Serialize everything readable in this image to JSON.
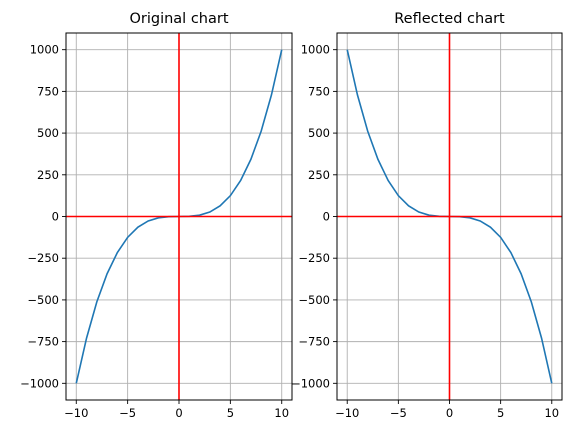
{
  "chart_data": [
    {
      "type": "line",
      "title": "Original chart",
      "xlim": [
        -11,
        11
      ],
      "ylim": [
        -1100,
        1100
      ],
      "xticks": [
        -10,
        -5,
        0,
        5,
        10
      ],
      "yticks": [
        -1000,
        -750,
        -500,
        -250,
        0,
        250,
        500,
        750,
        1000
      ],
      "xtick_labels": [
        "−10",
        "−5",
        "0",
        "5",
        "10"
      ],
      "ytick_labels": [
        "−1000",
        "−750",
        "−500",
        "−250",
        "0",
        "250",
        "500",
        "750",
        "1000"
      ],
      "grid": true,
      "reference_lines": {
        "x": 0,
        "y": 0,
        "color": "#ff0000"
      },
      "series": [
        {
          "color": "#1f77b4",
          "x": [
            -10,
            -9,
            -8,
            -7,
            -6,
            -5,
            -4,
            -3,
            -2,
            -1,
            0,
            1,
            2,
            3,
            4,
            5,
            6,
            7,
            8,
            9,
            10
          ],
          "y": [
            -1000,
            -729,
            -512,
            -343,
            -216,
            -125,
            -64,
            -27,
            -8,
            -1,
            0,
            1,
            8,
            27,
            64,
            125,
            216,
            343,
            512,
            729,
            1000
          ]
        }
      ]
    },
    {
      "type": "line",
      "title": "Reflected chart",
      "xlim": [
        -11,
        11
      ],
      "ylim": [
        -1100,
        1100
      ],
      "xticks": [
        -10,
        -5,
        0,
        5,
        10
      ],
      "yticks": [
        -1000,
        -750,
        -500,
        -250,
        0,
        250,
        500,
        750,
        1000
      ],
      "xtick_labels": [
        "−10",
        "−5",
        "0",
        "5",
        "10"
      ],
      "ytick_labels": [
        "−1000",
        "−750",
        "−500",
        "−250",
        "0",
        "250",
        "500",
        "750",
        "1000"
      ],
      "grid": true,
      "reference_lines": {
        "x": 0,
        "y": 0,
        "color": "#ff0000"
      },
      "series": [
        {
          "color": "#1f77b4",
          "x": [
            -10,
            -9,
            -8,
            -7,
            -6,
            -5,
            -4,
            -3,
            -2,
            -1,
            0,
            1,
            2,
            3,
            4,
            5,
            6,
            7,
            8,
            9,
            10
          ],
          "y": [
            1000,
            729,
            512,
            343,
            216,
            125,
            64,
            27,
            8,
            1,
            0,
            -1,
            -8,
            -27,
            -64,
            -125,
            -216,
            -343,
            -512,
            -729,
            -1000
          ]
        }
      ]
    }
  ]
}
